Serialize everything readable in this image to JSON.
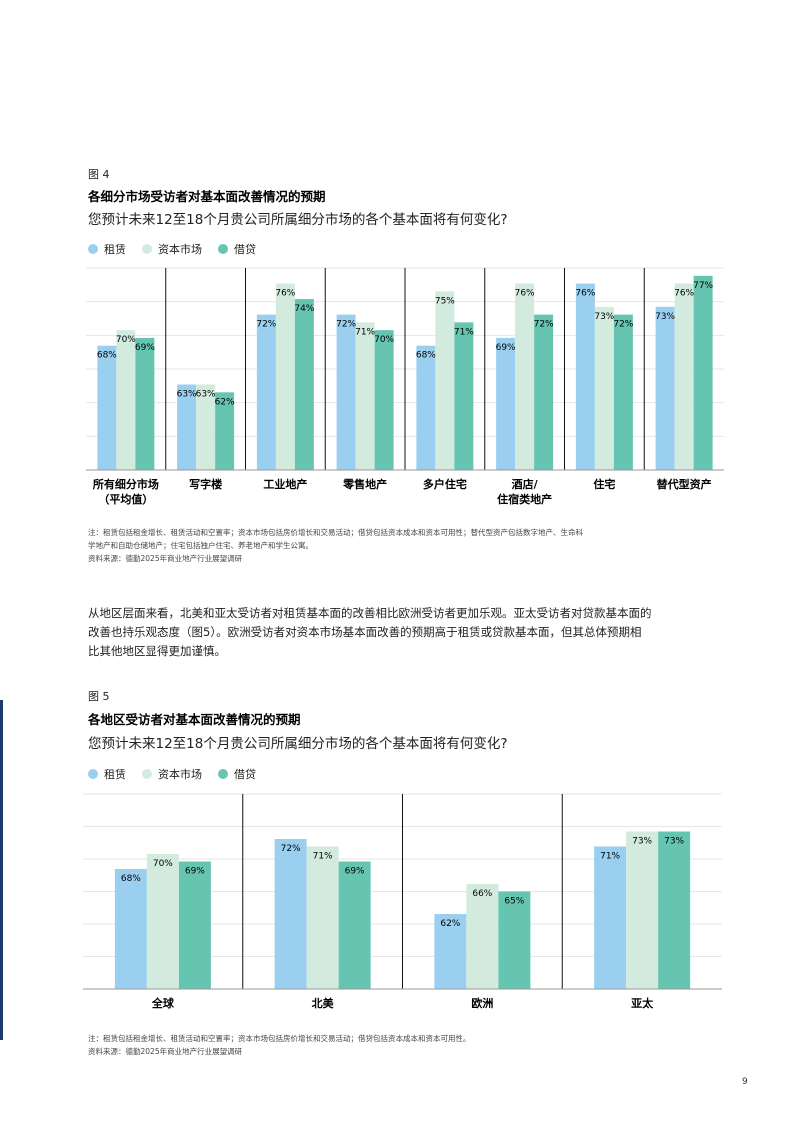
{
  "colors": {
    "rent": "#9ACFF0",
    "capital": "#D3EADF",
    "loan": "#66C5B0",
    "strip": "#1E3A6E"
  },
  "fig4": {
    "label": "图 4",
    "title": "各细分市场受访者对基本面改善情况的预期",
    "question": "您预计未来12至18个月贵公司所属细分市场的各个基本面将有何变化?",
    "legend": [
      "租赁",
      "资本市场",
      "借贷"
    ],
    "notes": [
      "注：租赁包括租金增长、租赁活动和空置率；资本市场包括房价增长和交易活动；借贷包括资本成本和资本可用性；替代型资产包括数字地产、生命科",
      "学地产和自助仓储地产；住宅包括独户住宅、养老地产和学生公寓。",
      "资料来源：德勤2025年商业地产行业展望调研"
    ]
  },
  "fig5": {
    "label": "图 5",
    "title": "各地区受访者对基本面改善情况的预期",
    "question": "您预计未来12至18个月贵公司所属细分市场的各个基本面将有何变化?",
    "legend": [
      "租赁",
      "资本市场",
      "借贷"
    ],
    "notes": [
      "注：租赁包括租金增长、租赁活动和空置率；资本市场包括房价增长和交易活动；借贷包括资本成本和资本可用性。",
      "资料来源：德勤2025年商业地产行业展望调研"
    ]
  },
  "body_text": [
    "从地区层面来看，北美和亚太受访者对租赁基本面的改善相比欧洲受访者更加乐观。亚太受访者对贷款基本面的",
    "改善也持乐观态度（图5）。欧洲受访者对资本市场基本面改善的预期高于租赁或贷款基本面，但其总体预期相",
    "比其他地区显得更加谨慎。"
  ],
  "page_number": "9",
  "chart_data": [
    {
      "type": "bar",
      "title": "各细分市场受访者对基本面改善情况的预期",
      "categories": [
        [
          "所有细分市场",
          "（平均值）"
        ],
        [
          "写字楼"
        ],
        [
          "工业地产"
        ],
        [
          "零售地产"
        ],
        [
          "多户住宅"
        ],
        [
          "酒店/",
          "住宿类地产"
        ],
        [
          "住宅"
        ],
        [
          "替代型资产"
        ]
      ],
      "series": [
        {
          "name": "租赁",
          "values": [
            68,
            63,
            72,
            72,
            68,
            69,
            76,
            73
          ]
        },
        {
          "name": "资本市场",
          "values": [
            70,
            63,
            76,
            71,
            75,
            76,
            73,
            76
          ]
        },
        {
          "name": "借贷",
          "values": [
            69,
            62,
            74,
            70,
            71,
            72,
            72,
            77
          ]
        }
      ],
      "value_suffix": "%",
      "ylim": [
        52,
        78
      ],
      "grid": true,
      "legend": "top-left"
    },
    {
      "type": "bar",
      "title": "各地区受访者对基本面改善情况的预期",
      "categories": [
        [
          "全球"
        ],
        [
          "北美"
        ],
        [
          "欧洲"
        ],
        [
          "亚太"
        ]
      ],
      "series": [
        {
          "name": "租赁",
          "values": [
            68,
            72,
            62,
            71
          ]
        },
        {
          "name": "资本市场",
          "values": [
            70,
            71,
            66,
            73
          ]
        },
        {
          "name": "借贷",
          "values": [
            69,
            69,
            65,
            73
          ]
        }
      ],
      "value_suffix": "%",
      "ylim": [
        52,
        78
      ],
      "grid": true,
      "legend": "top-left"
    }
  ]
}
